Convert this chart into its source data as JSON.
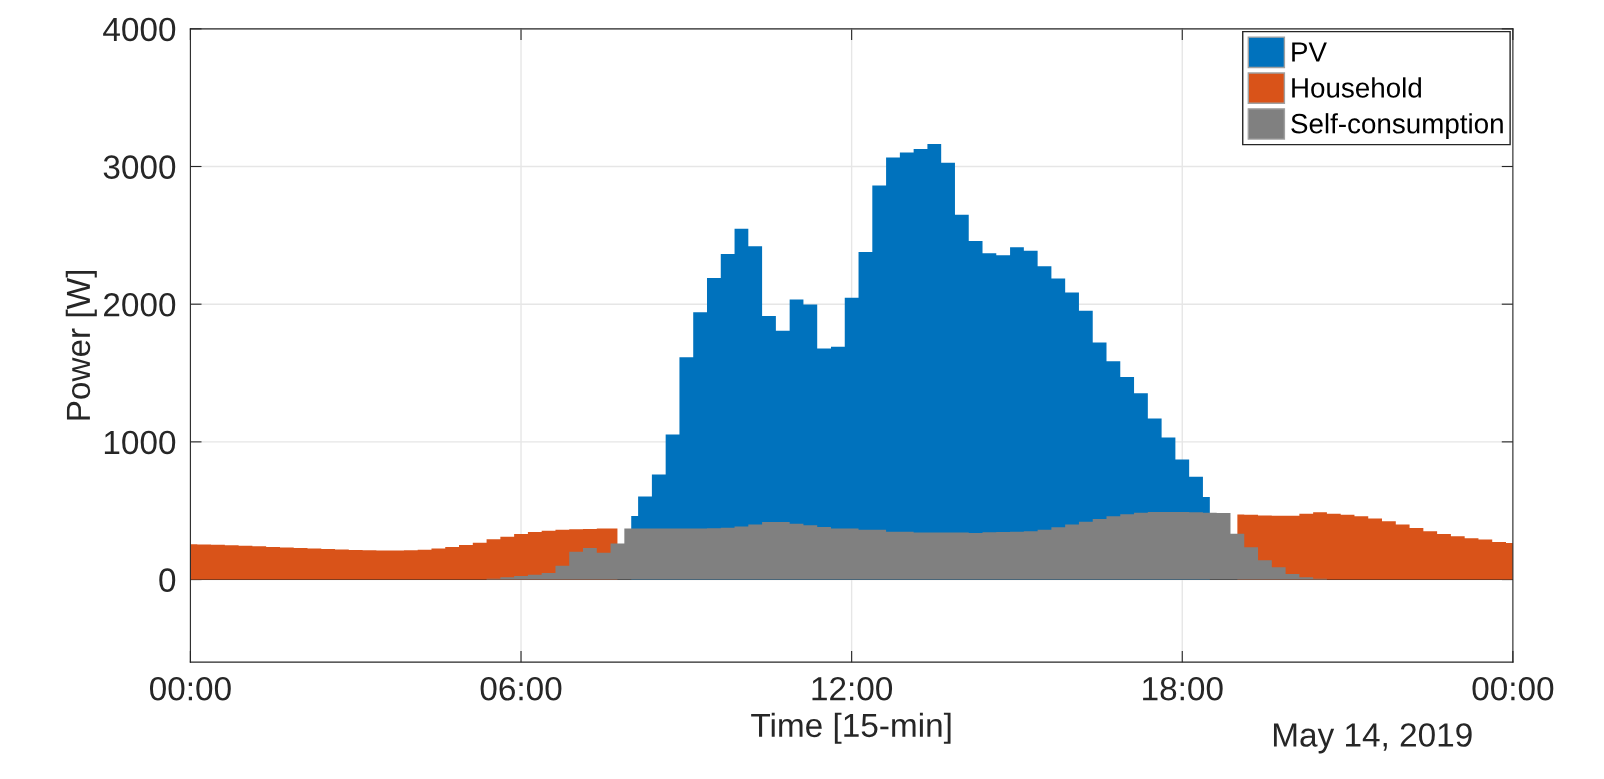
{
  "chart_data": {
    "type": "area",
    "xlabel": "Time [15-min]",
    "ylabel": "Power [W]",
    "annotations": [
      "May 14, 2019"
    ],
    "x": [
      0,
      0.25,
      0.5,
      0.75,
      1,
      1.25,
      1.5,
      1.75,
      2,
      2.25,
      2.5,
      2.75,
      3,
      3.25,
      3.5,
      3.75,
      4,
      4.25,
      4.5,
      4.75,
      5,
      5.25,
      5.5,
      5.75,
      6,
      6.25,
      6.5,
      6.75,
      7,
      7.25,
      7.5,
      7.75,
      8,
      8.25,
      8.5,
      8.75,
      9,
      9.25,
      9.5,
      9.75,
      10,
      10.25,
      10.5,
      10.75,
      11,
      11.25,
      11.5,
      11.75,
      12,
      12.25,
      12.5,
      12.75,
      13,
      13.25,
      13.5,
      13.75,
      14,
      14.25,
      14.5,
      14.75,
      15,
      15.25,
      15.5,
      15.75,
      16,
      16.25,
      16.5,
      16.75,
      17,
      17.25,
      17.5,
      17.75,
      18,
      18.25,
      18.5,
      18.75,
      19,
      19.25,
      19.5,
      19.75,
      20,
      20.25,
      20.5,
      20.75,
      21,
      21.25,
      21.5,
      21.75,
      22,
      22.25,
      22.5,
      22.75,
      23,
      23.25,
      23.5,
      23.75,
      24
    ],
    "series": [
      {
        "name": "PV",
        "color": "#0072bd",
        "values": [
          null,
          null,
          null,
          null,
          null,
          null,
          null,
          null,
          null,
          null,
          null,
          null,
          null,
          null,
          null,
          null,
          null,
          null,
          null,
          null,
          null,
          null,
          null,
          null,
          null,
          null,
          null,
          null,
          null,
          null,
          null,
          null,
          461,
          604,
          763,
          1053,
          1614,
          1942,
          2191,
          2365,
          2548,
          2420,
          1915,
          1807,
          2034,
          1998,
          1679,
          1691,
          2046,
          2379,
          2862,
          3065,
          3101,
          3128,
          3164,
          3027,
          2650,
          2459,
          2370,
          2355,
          2413,
          2389,
          2275,
          2186,
          2085,
          1952,
          1722,
          1585,
          1471,
          1353,
          1169,
          1031,
          872,
          746,
          599,
          null,
          null,
          null,
          null,
          null,
          null,
          null,
          null,
          null,
          null,
          null,
          null,
          null,
          null,
          null,
          null,
          null,
          null,
          null,
          null,
          null,
          null
        ]
      },
      {
        "name": "Household",
        "color": "#d95319",
        "values": [
          257,
          255,
          252,
          249,
          245,
          241,
          237,
          233,
          229,
          225,
          221,
          218,
          215,
          212,
          211,
          211,
          213,
          217,
          225,
          237,
          250,
          268,
          292,
          311,
          330,
          345,
          355,
          361,
          365,
          368,
          370,
          370,
          null,
          null,
          null,
          null,
          null,
          null,
          null,
          null,
          null,
          null,
          null,
          null,
          null,
          null,
          null,
          null,
          null,
          null,
          null,
          null,
          null,
          null,
          null,
          null,
          null,
          null,
          null,
          null,
          null,
          null,
          null,
          null,
          null,
          null,
          null,
          null,
          null,
          null,
          null,
          null,
          null,
          null,
          null,
          null,
          473,
          471,
          466,
          464,
          464,
          478,
          488,
          478,
          471,
          459,
          444,
          423,
          399,
          374,
          350,
          331,
          314,
          300,
          290,
          273,
          266
        ]
      },
      {
        "name": "Self-consumption",
        "color": "#808080",
        "values": [
          0,
          0,
          0,
          0,
          0,
          0,
          0,
          0,
          0,
          0,
          0,
          0,
          0,
          0,
          0,
          0,
          0,
          0,
          0,
          0,
          0,
          0,
          6,
          16,
          25,
          35,
          47,
          100,
          201,
          229,
          195,
          261,
          370,
          370,
          370,
          370,
          370,
          370,
          372,
          376,
          386,
          399,
          418,
          418,
          406,
          394,
          382,
          370,
          370,
          362,
          362,
          348,
          348,
          341,
          341,
          341,
          341,
          338,
          343,
          345,
          348,
          350,
          362,
          379,
          400,
          420,
          440,
          460,
          475,
          485,
          490,
          490,
          490,
          488,
          485,
          483,
          333,
          234,
          140,
          89,
          41,
          17,
          5,
          0,
          0,
          0,
          0,
          0,
          0,
          0,
          0,
          0,
          0,
          0,
          0,
          0,
          0
        ]
      }
    ],
    "xlim": [
      0,
      24
    ],
    "xticks": [
      {
        "value": 0,
        "label": "00:00"
      },
      {
        "value": 6,
        "label": "06:00"
      },
      {
        "value": 12,
        "label": "12:00"
      },
      {
        "value": 18,
        "label": "18:00"
      },
      {
        "value": 24,
        "label": "00:00"
      }
    ],
    "ylim": [
      -600,
      4000
    ],
    "yticks": [
      0,
      1000,
      2000,
      3000,
      4000
    ],
    "grid": true,
    "legend": "top right"
  }
}
